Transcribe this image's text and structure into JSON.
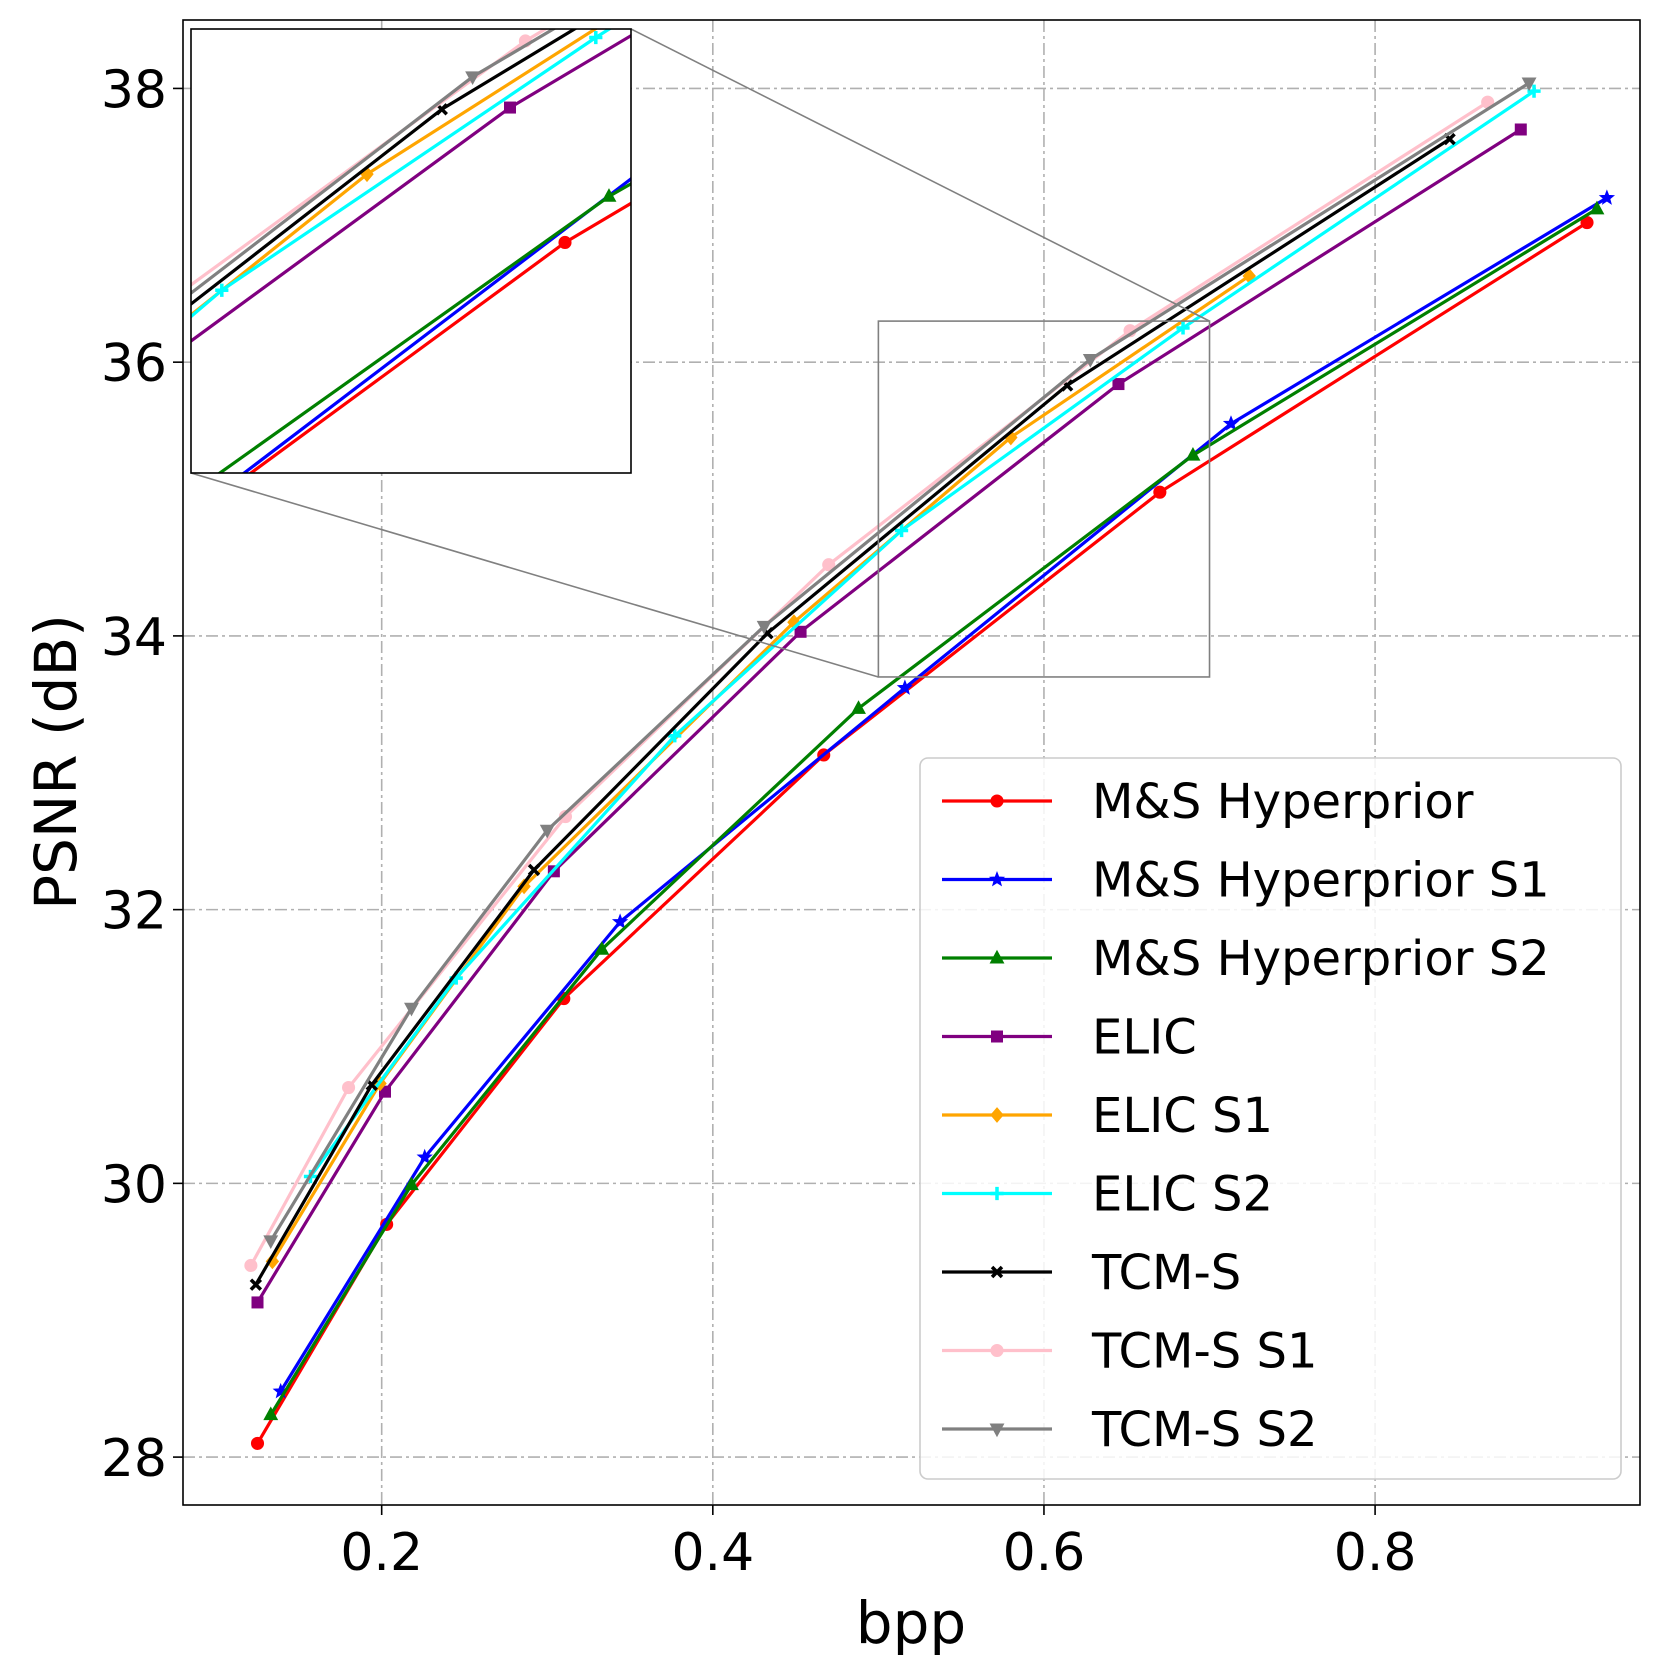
{
  "chart_data": {
    "type": "line",
    "title": "",
    "xlabel": "bpp",
    "ylabel": "PSNR (dB)",
    "xlim": [
      0.08,
      0.96
    ],
    "ylim": [
      27.65,
      38.5
    ],
    "xticks": [
      0.2,
      0.4,
      0.6,
      0.8
    ],
    "xtick_labels": [
      "0.2",
      "0.4",
      "0.6",
      "0.8"
    ],
    "yticks": [
      28,
      30,
      32,
      34,
      36,
      38
    ],
    "ytick_labels": [
      "28",
      "30",
      "32",
      "34",
      "36",
      "38"
    ],
    "grid": true,
    "legend_position": "bottom-right",
    "inset": {
      "xlim": [
        0.5,
        0.7
      ],
      "ylim": [
        33.7,
        36.3
      ]
    },
    "series": [
      {
        "name": "M&S Hyperprior",
        "color": "#ff0000",
        "marker": "circle",
        "x": [
          0.125,
          0.203,
          0.31,
          0.467,
          0.67,
          0.928
        ],
        "y": [
          28.1,
          29.7,
          31.35,
          33.13,
          35.05,
          37.02
        ]
      },
      {
        "name": "M&S Hyperprior S1",
        "color": "#0000ff",
        "marker": "star",
        "x": [
          0.139,
          0.226,
          0.344,
          0.516,
          0.713,
          0.94
        ],
        "y": [
          28.48,
          30.19,
          31.91,
          33.62,
          35.55,
          37.2
        ]
      },
      {
        "name": "M&S Hyperprior S2",
        "color": "#008000",
        "marker": "triangle-up",
        "x": [
          0.133,
          0.218,
          0.333,
          0.488,
          0.69,
          0.934
        ],
        "y": [
          28.31,
          29.99,
          31.71,
          33.47,
          35.32,
          37.12
        ]
      },
      {
        "name": "ELIC",
        "color": "#800080",
        "marker": "square",
        "x": [
          0.125,
          0.202,
          0.304,
          0.453,
          0.645,
          0.888
        ],
        "y": [
          29.13,
          30.67,
          32.28,
          34.03,
          35.84,
          37.7
        ]
      },
      {
        "name": "ELIC S1",
        "color": "#ffa500",
        "marker": "diamond",
        "x": [
          0.134,
          0.199,
          0.286,
          0.449,
          0.58,
          0.724
        ],
        "y": [
          29.43,
          30.73,
          32.17,
          34.1,
          35.45,
          36.63
        ]
      },
      {
        "name": "ELIC S2",
        "color": "#00ffff",
        "marker": "plus",
        "x": [
          0.157,
          0.245,
          0.377,
          0.514,
          0.684,
          0.896
        ],
        "y": [
          30.05,
          31.5,
          33.27,
          34.77,
          36.25,
          37.98
        ]
      },
      {
        "name": "TCM-S",
        "color": "#000000",
        "marker": "x",
        "x": [
          0.124,
          0.194,
          0.292,
          0.433,
          0.614,
          0.845
        ],
        "y": [
          29.26,
          30.72,
          32.29,
          34.02,
          35.83,
          37.63
        ]
      },
      {
        "name": "TCM-S S1",
        "color": "#ffc0cb",
        "marker": "circle",
        "x": [
          0.121,
          0.18,
          0.311,
          0.47,
          0.652,
          0.868
        ],
        "y": [
          29.4,
          30.7,
          32.68,
          34.52,
          36.23,
          37.9
        ]
      },
      {
        "name": "TCM-S S2",
        "color": "#808080",
        "marker": "triangle-down",
        "x": [
          0.133,
          0.218,
          0.3,
          0.431,
          0.628,
          0.893
        ],
        "y": [
          29.58,
          31.28,
          32.58,
          34.07,
          36.02,
          38.04
        ]
      }
    ]
  }
}
